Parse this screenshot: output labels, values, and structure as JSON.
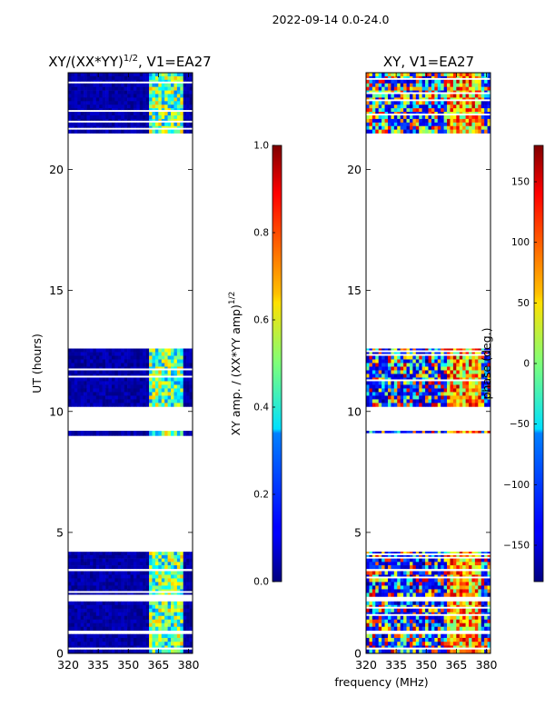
{
  "suptitle": "2022-09-14 0.0-24.0",
  "colors": {
    "data_low": "#00007f",
    "cyan": "#4dffff",
    "green": "#7dff7a",
    "yellow": "#ffea00",
    "red": "#ff2a00",
    "background": "#ffffff"
  },
  "chart_data": [
    {
      "type": "heatmap",
      "title_main": "XY/(XX*YY)",
      "title_sup": "1/2",
      "title_rest": ", V1=EA27",
      "xlabel": "",
      "ylabel": "UT (hours)",
      "xlim": [
        320,
        382
      ],
      "ylim": [
        0,
        24
      ],
      "xticks": [
        "320",
        "335",
        "350",
        "365",
        "380"
      ],
      "xtick_values": [
        320,
        335,
        350,
        365,
        380
      ],
      "yticks": [
        "0",
        "5",
        "10",
        "15",
        "20"
      ],
      "ytick_values": [
        0,
        5,
        10,
        15,
        20
      ],
      "data_blocks": [
        {
          "ut": [
            0.0,
            0.8
          ]
        },
        {
          "ut": [
            0.95,
            2.15
          ]
        },
        {
          "ut": [
            2.35,
            3.4
          ]
        },
        {
          "ut": [
            3.5,
            4.2
          ]
        },
        {
          "ut": [
            9.0,
            9.2
          ]
        },
        {
          "ut": [
            10.2,
            12.6
          ]
        },
        {
          "ut": [
            21.5,
            24.0
          ]
        }
      ],
      "colorbar": {
        "label": "XY amp. / (XX*YY amp)",
        "label_sup": "1/2",
        "range": [
          0.0,
          1.0
        ],
        "ticks": [
          "0.0",
          "0.2",
          "0.4",
          "0.6",
          "0.8",
          "1.0"
        ],
        "tick_values": [
          0.0,
          0.2,
          0.4,
          0.6,
          0.8,
          1.0
        ]
      }
    },
    {
      "type": "heatmap",
      "title": "XY, V1=EA27",
      "xlabel": "frequency (MHz)",
      "ylabel": "",
      "xlim": [
        320,
        382
      ],
      "ylim": [
        0,
        24
      ],
      "xticks": [
        "320",
        "335",
        "350",
        "365",
        "380"
      ],
      "xtick_values": [
        320,
        335,
        350,
        365,
        380
      ],
      "yticks": [
        "0",
        "5",
        "10",
        "15",
        "20"
      ],
      "ytick_values": [
        0,
        5,
        10,
        15,
        20
      ],
      "data_blocks": [
        {
          "ut": [
            0.0,
            0.8
          ]
        },
        {
          "ut": [
            0.95,
            2.15
          ]
        },
        {
          "ut": [
            2.35,
            3.4
          ]
        },
        {
          "ut": [
            3.5,
            4.2
          ]
        },
        {
          "ut": [
            9.0,
            9.2
          ]
        },
        {
          "ut": [
            10.2,
            12.6
          ]
        },
        {
          "ut": [
            21.5,
            24.0
          ]
        }
      ],
      "colorbar": {
        "label": "phase (deg.)",
        "range": [
          -180,
          180
        ],
        "ticks": [
          "150",
          "100",
          "50",
          "0",
          "−50",
          "−100",
          "−150"
        ],
        "tick_values": [
          150,
          100,
          50,
          0,
          -50,
          -100,
          -150
        ]
      }
    }
  ]
}
